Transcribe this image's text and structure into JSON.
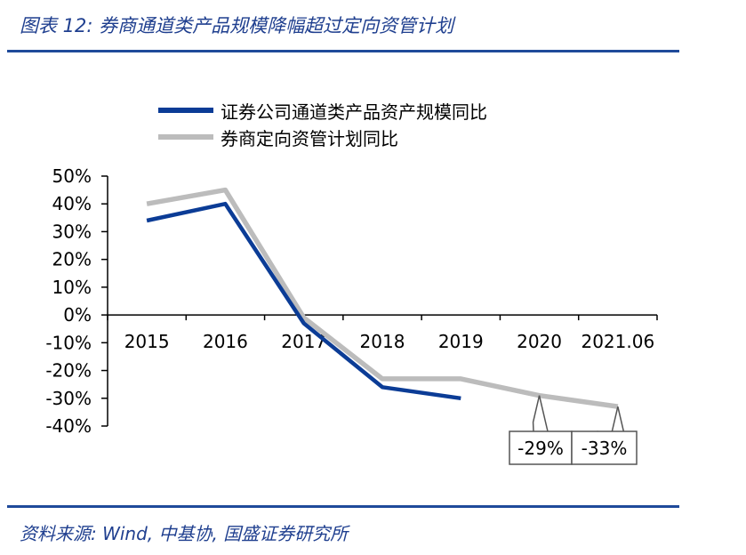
{
  "header": {
    "title": "图表 12: 券商通道类产品规模降幅超过定向资管计划"
  },
  "footer": {
    "source": "资料来源: Wind, 中基协, 国盛证券研究所"
  },
  "colors": {
    "series_1": "#0b3c96",
    "series_2": "#bcbcbc",
    "rule": "#1f4a9a",
    "title": "#1f3f8f"
  },
  "chart_data": {
    "type": "line",
    "categories": [
      "2015",
      "2016",
      "2017",
      "2018",
      "2019",
      "2020",
      "2021.06"
    ],
    "series": [
      {
        "name": "证券公司通道类产品资产规模同比",
        "values": [
          34,
          40,
          -3,
          -26,
          -30,
          null,
          null
        ]
      },
      {
        "name": "券商定向资管计划同比",
        "values": [
          40,
          45,
          -1,
          -23,
          -23,
          -29,
          -33
        ]
      }
    ],
    "ylim": [
      -40,
      50
    ],
    "yticks": [
      "50%",
      "40%",
      "30%",
      "20%",
      "10%",
      "0%",
      "-10%",
      "-20%",
      "-30%",
      "-40%"
    ],
    "grid": false,
    "legend_position": "top-left",
    "annotations": [
      {
        "category": "2020",
        "text": "-29%"
      },
      {
        "category": "2021.06",
        "text": "-33%"
      }
    ]
  }
}
